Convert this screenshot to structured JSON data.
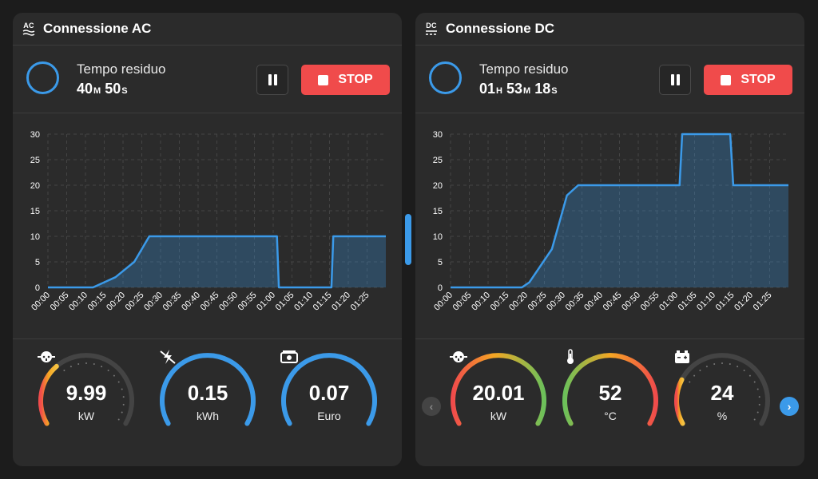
{
  "colors": {
    "accent": "#3b9ae9",
    "stop": "#f04b4b",
    "panel": "#2b2b2b"
  },
  "chart_data": [
    {
      "type": "area",
      "title": "Connessione AC",
      "x": [
        "00:00",
        "00:05",
        "00:10",
        "00:15",
        "00:20",
        "00:25",
        "00:30",
        "00:35",
        "00:40",
        "00:45",
        "00:50",
        "00:55",
        "01:00",
        "01:05",
        "01:10",
        "01:15",
        "01:20",
        "01:25"
      ],
      "ylim": [
        0,
        30
      ],
      "yticks": [
        0,
        5,
        10,
        15,
        20,
        25,
        30
      ],
      "xmax": 90,
      "series": [
        {
          "name": "kW",
          "points": [
            [
              0,
              0
            ],
            [
              12,
              0
            ],
            [
              18,
              2
            ],
            [
              23,
              5
            ],
            [
              27,
              10
            ],
            [
              61,
              10
            ],
            [
              61.5,
              0
            ],
            [
              75.5,
              0
            ],
            [
              76,
              10
            ],
            [
              90,
              10
            ]
          ]
        }
      ],
      "grid": true
    },
    {
      "type": "area",
      "title": "Connessione DC",
      "x": [
        "00:00",
        "00:05",
        "00:10",
        "00:15",
        "00:20",
        "00:25",
        "00:30",
        "00:35",
        "00:40",
        "00:45",
        "00:50",
        "00:55",
        "01:00",
        "01:05",
        "01:10",
        "01:15",
        "01:20",
        "01:25"
      ],
      "ylim": [
        0,
        30
      ],
      "yticks": [
        0,
        5,
        10,
        15,
        20,
        25,
        30
      ],
      "xmax": 90,
      "series": [
        {
          "name": "kW",
          "points": [
            [
              0,
              0
            ],
            [
              19,
              0
            ],
            [
              21,
              1
            ],
            [
              27,
              7.5
            ],
            [
              31,
              18
            ],
            [
              34,
              20
            ],
            [
              61,
              20
            ],
            [
              61.7,
              30
            ],
            [
              74.5,
              30
            ],
            [
              75.3,
              20
            ],
            [
              90,
              20
            ]
          ]
        }
      ],
      "grid": true
    }
  ],
  "ac": {
    "title": "Connessione AC",
    "icon_label": "AC",
    "icon": "ac-icon",
    "timer_label": "Tempo residuo",
    "minutes": "40",
    "minutes_unit": "M",
    "seconds": "50",
    "seconds_unit": "S",
    "pause_icon": "pause-icon",
    "stop_label": "STOP",
    "gauges": [
      {
        "value": "9.99",
        "unit": "kW",
        "icon": "plug-icon",
        "fraction": 0.33
      },
      {
        "value": "0.15",
        "unit": "kWh",
        "icon": "energy-icon",
        "fraction": 1.0
      },
      {
        "value": "0.07",
        "unit": "Euro",
        "icon": "money-icon",
        "fraction": 1.0
      }
    ]
  },
  "dc": {
    "title": "Connessione DC",
    "icon_label": "DC",
    "icon": "dc-icon",
    "timer_label": "Tempo residuo",
    "hours": "01",
    "hours_unit": "H",
    "minutes": "53",
    "minutes_unit": "M",
    "seconds": "18",
    "seconds_unit": "S",
    "pause_icon": "pause-icon",
    "stop_label": "STOP",
    "gauges": [
      {
        "value": "20.01",
        "unit": "kW",
        "icon": "plug-icon",
        "fraction": 1.0
      },
      {
        "value": "52",
        "unit": "°C",
        "icon": "thermometer-icon",
        "fraction": 1.0
      },
      {
        "value": "24",
        "unit": "%",
        "icon": "battery-icon",
        "fraction": 0.24
      }
    ],
    "prev_label": "‹",
    "next_label": "›"
  }
}
